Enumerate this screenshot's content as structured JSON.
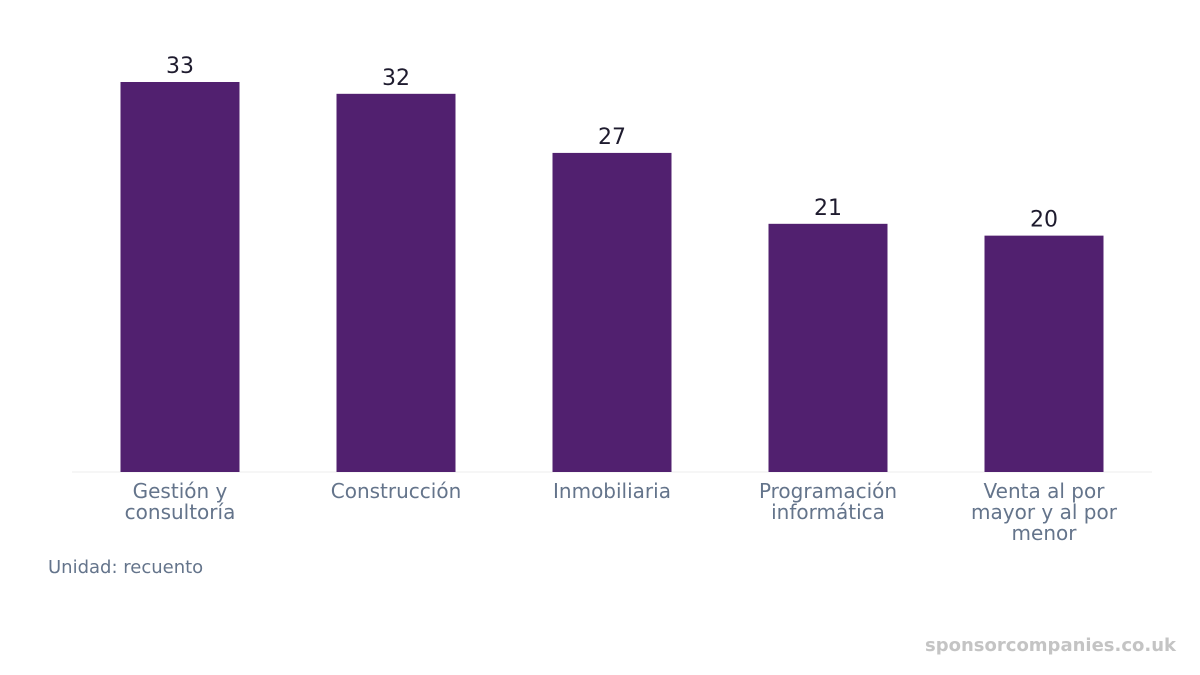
{
  "chart_data": {
    "type": "bar",
    "categories": [
      [
        "Gestión y",
        "consultoría"
      ],
      [
        "Construcción"
      ],
      [
        "Inmobiliaria"
      ],
      [
        "Programación",
        "informática"
      ],
      [
        "Venta al por",
        "mayor y al por",
        "menor"
      ]
    ],
    "values": [
      33,
      32,
      27,
      21,
      20
    ],
    "ylim": [
      0,
      33
    ],
    "bar_color": "#51206f",
    "grid": false,
    "legend": "none"
  },
  "unit_note": "Unidad: recuento",
  "watermark": "sponsorcompanies.co.uk",
  "colors": {
    "bar": "#51206f",
    "value_label": "#1e1b2e",
    "tick_label": "#64748b",
    "baseline": "#eeeeee"
  }
}
